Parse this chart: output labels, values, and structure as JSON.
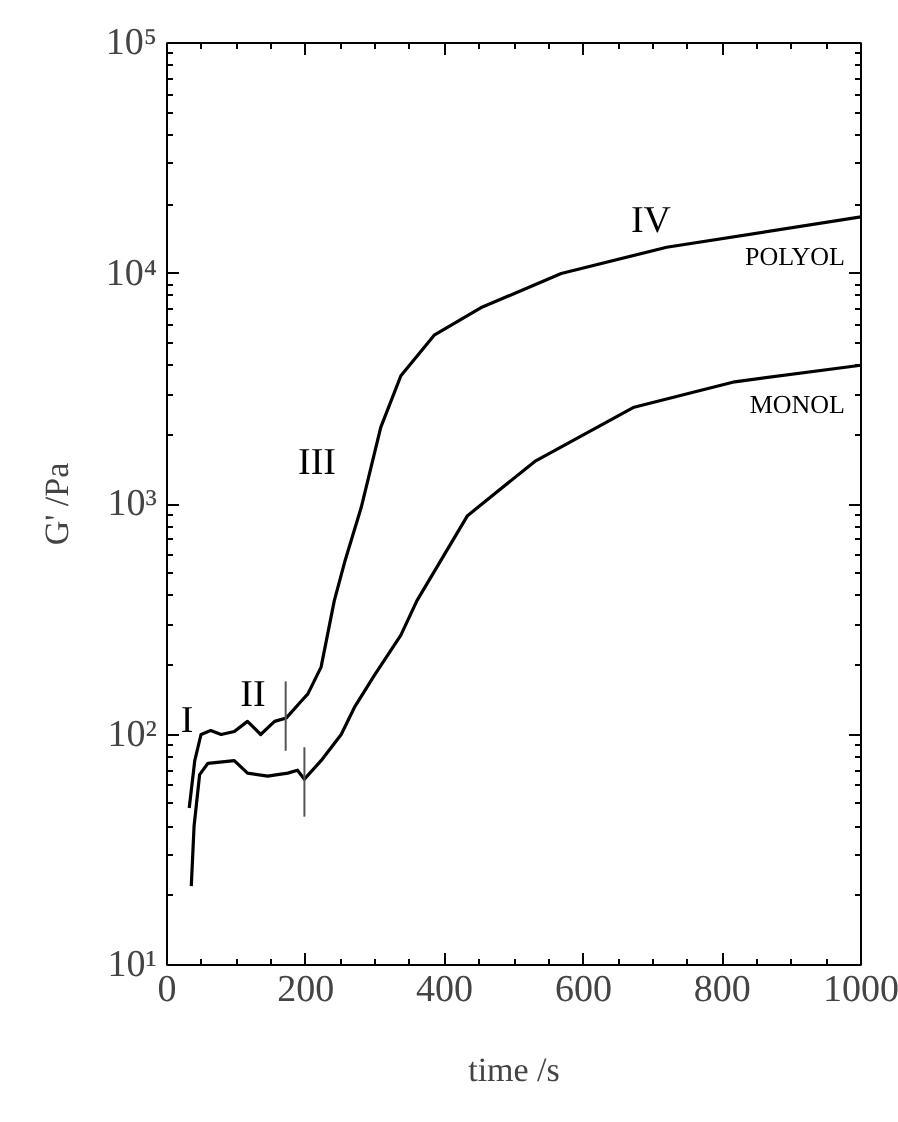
{
  "chart_data": {
    "type": "line",
    "xlabel": "time /s",
    "ylabel": "G' /Pa",
    "log": "y",
    "xlim": [
      0,
      1000
    ],
    "ylim": [
      10,
      100000
    ],
    "xticks": [
      0,
      200,
      400,
      600,
      800,
      1000
    ],
    "yticks": [
      {
        "value": 10,
        "label": "10¹"
      },
      {
        "value": 100,
        "label": "10²"
      },
      {
        "value": 1000,
        "label": "10³"
      },
      {
        "value": 10000,
        "label": "10⁴"
      },
      {
        "value": 100000,
        "label": "10⁵"
      }
    ],
    "grid": false,
    "legend": "right",
    "marker": "none",
    "line_style": "solid",
    "series": [
      {
        "name": "POLYOL",
        "color": "#000000",
        "x": [
          32,
          40,
          49,
          63,
          78,
          97,
          116,
          135,
          155,
          172,
          193,
          203,
          222,
          241,
          256,
          280,
          308,
          337,
          385,
          452,
          568,
          720,
          1000
        ],
        "values": [
          48,
          77,
          100,
          104,
          100,
          103,
          114,
          100,
          114,
          118,
          139,
          150,
          196,
          380,
          560,
          970,
          2150,
          3600,
          5400,
          7100,
          10000,
          13000,
          17600
        ]
      },
      {
        "name": "MONOL",
        "color": "#000000",
        "x": [
          35,
          39,
          47,
          59,
          97,
          116,
          145,
          174,
          188,
          198,
          222,
          251,
          270,
          299,
          337,
          360,
          433,
          530,
          673,
          818,
          1000
        ],
        "values": [
          22,
          40,
          67,
          75,
          77,
          68,
          66,
          68,
          70,
          64,
          77,
          100,
          131,
          181,
          270,
          380,
          890,
          1530,
          2630,
          3390,
          4000
        ]
      },
      {
        "color": "#555555",
        "x": [
          171,
          171
        ],
        "values": [
          85,
          170
        ]
      },
      {
        "color": "#555555",
        "x": [
          198,
          198
        ],
        "values": [
          44,
          88
        ]
      }
    ],
    "annotations": [
      "I",
      "II",
      "III",
      "IV"
    ]
  }
}
